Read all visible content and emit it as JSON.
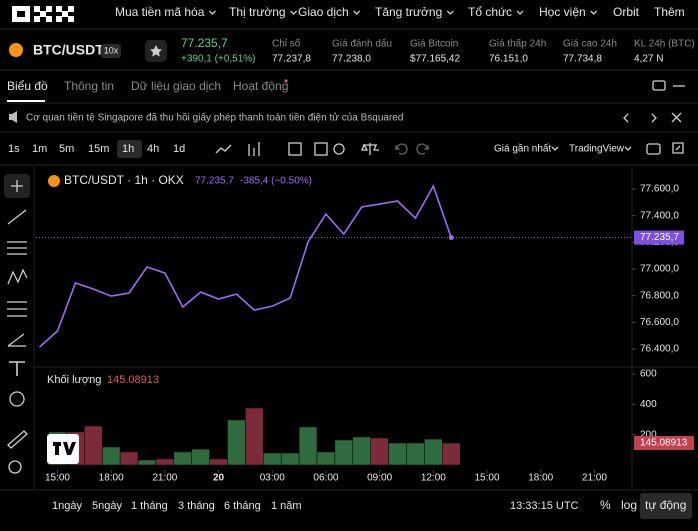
{
  "nav": {
    "items": [
      "Mua tiền mã hóa",
      "Thị trường",
      "Giao dịch",
      "Tăng trưởng",
      "Tổ chức",
      "Học viện",
      "Orbit",
      "Thêm"
    ]
  },
  "ticker": {
    "pair": "BTC/USDT",
    "leverage": "10x",
    "price": "77.235,7",
    "change": "+390,1 (+0,51%)",
    "stats": [
      {
        "label": "Chỉ số",
        "value": "77.237,8"
      },
      {
        "label": "Giá đánh dấu",
        "value": "77.238,0"
      },
      {
        "label": "Giá Bitcoin",
        "value": "$77.165,42"
      },
      {
        "label": "Giá thấp 24h",
        "value": "76.151,0"
      },
      {
        "label": "Giá cao 24h",
        "value": "77.734,8"
      },
      {
        "label": "KL 24h (BTC)",
        "value": "4,27 N"
      }
    ]
  },
  "tabs": [
    "Biểu đồ",
    "Thông tin",
    "Dữ liệu giao dịch",
    "Hoạt động"
  ],
  "notice": "Cơ quan tiền tệ Singapore đã thu hồi giấy phép thanh toán tiền điện tử của Bsquared",
  "toolbar": {
    "intervals": [
      "1s",
      "1m",
      "5m",
      "15m",
      "1h",
      "4h",
      "1d"
    ],
    "active": "1h",
    "price_source": "Giá gần nhất",
    "chart_engine": "TradingView"
  },
  "chart_data": {
    "type": "line",
    "title": "BTC/USDT · 1h · OKX",
    "last_value_label": "77.235,7",
    "legend_change": "-385,4 (−0.50%)",
    "color": "#9b6cf5",
    "x": [
      0,
      1,
      2,
      3,
      4,
      5,
      6,
      7,
      8,
      9,
      10,
      11,
      12,
      13,
      14,
      15,
      16,
      17,
      18,
      19,
      20,
      21,
      22,
      23
    ],
    "values": [
      76415,
      76535,
      76895,
      76850,
      76797,
      76820,
      77015,
      76970,
      76715,
      76827,
      76775,
      76812,
      76692,
      76722,
      76782,
      77202,
      77412,
      77262,
      77465,
      77487,
      77510,
      77382,
      77622,
      77235.7
    ],
    "xlim": [
      -0.2,
      33.1
    ],
    "xticks": [
      {
        "value": 1,
        "label": "15:00"
      },
      {
        "value": 4,
        "label": "18:00"
      },
      {
        "value": 7,
        "label": "21:00"
      },
      {
        "value": 10,
        "label": "20"
      },
      {
        "value": 13,
        "label": "03:00"
      },
      {
        "value": 16,
        "label": "06:00"
      },
      {
        "value": 19,
        "label": "09:00"
      },
      {
        "value": 22,
        "label": "12:00"
      },
      {
        "value": 25,
        "label": "15:00"
      },
      {
        "value": 28,
        "label": "18:00"
      },
      {
        "value": 31,
        "label": "21:00"
      }
    ],
    "ylim": [
      76280,
      77705
    ],
    "yticks": [
      {
        "value": 76400,
        "label": "76.400,0"
      },
      {
        "value": 76600,
        "label": "76.600,0"
      },
      {
        "value": 76800,
        "label": "76.800,0"
      },
      {
        "value": 77000,
        "label": "77.000,0"
      },
      {
        "value": 77200,
        "label": "77.200,0"
      },
      {
        "value": 77400,
        "label": "77.400,0"
      },
      {
        "value": 77600,
        "label": "77.600,0"
      }
    ],
    "volume": {
      "name": "Khối lượng",
      "values": [
        null,
        218,
        218,
        257,
        119,
        86,
        33,
        40,
        86,
        105,
        40,
        297,
        376,
        79,
        79,
        251,
        86,
        165,
        185,
        178,
        145,
        145,
        171,
        145.08913
      ],
      "colors": [
        null,
        "#2e6b3e",
        "#7d2a3a",
        "#7d2a3a",
        "#2e6b3e",
        "#7d2a3a",
        "#2e6b3e",
        "#7d2a3a",
        "#2e6b3e",
        "#2e6b3e",
        "#7d2a3a",
        "#2e6b3e",
        "#7d2a3a",
        "#2e6b3e",
        "#2e6b3e",
        "#2e6b3e",
        "#2e6b3e",
        "#2e6b3e",
        "#2e6b3e",
        "#7d2a3a",
        "#2e6b3e",
        "#2e6b3e",
        "#2e6b3e",
        "#7d2a3a"
      ],
      "ylim": [
        0,
        600
      ],
      "yticks": [
        600,
        400,
        200
      ]
    }
  },
  "bottom": {
    "ranges": [
      "1ngày",
      "5ngày",
      "1 tháng",
      "3 tháng",
      "6 tháng",
      "1 năm"
    ],
    "clock": "13:33:15 UTC",
    "percent": "%",
    "log": "log",
    "auto": "tự động"
  }
}
